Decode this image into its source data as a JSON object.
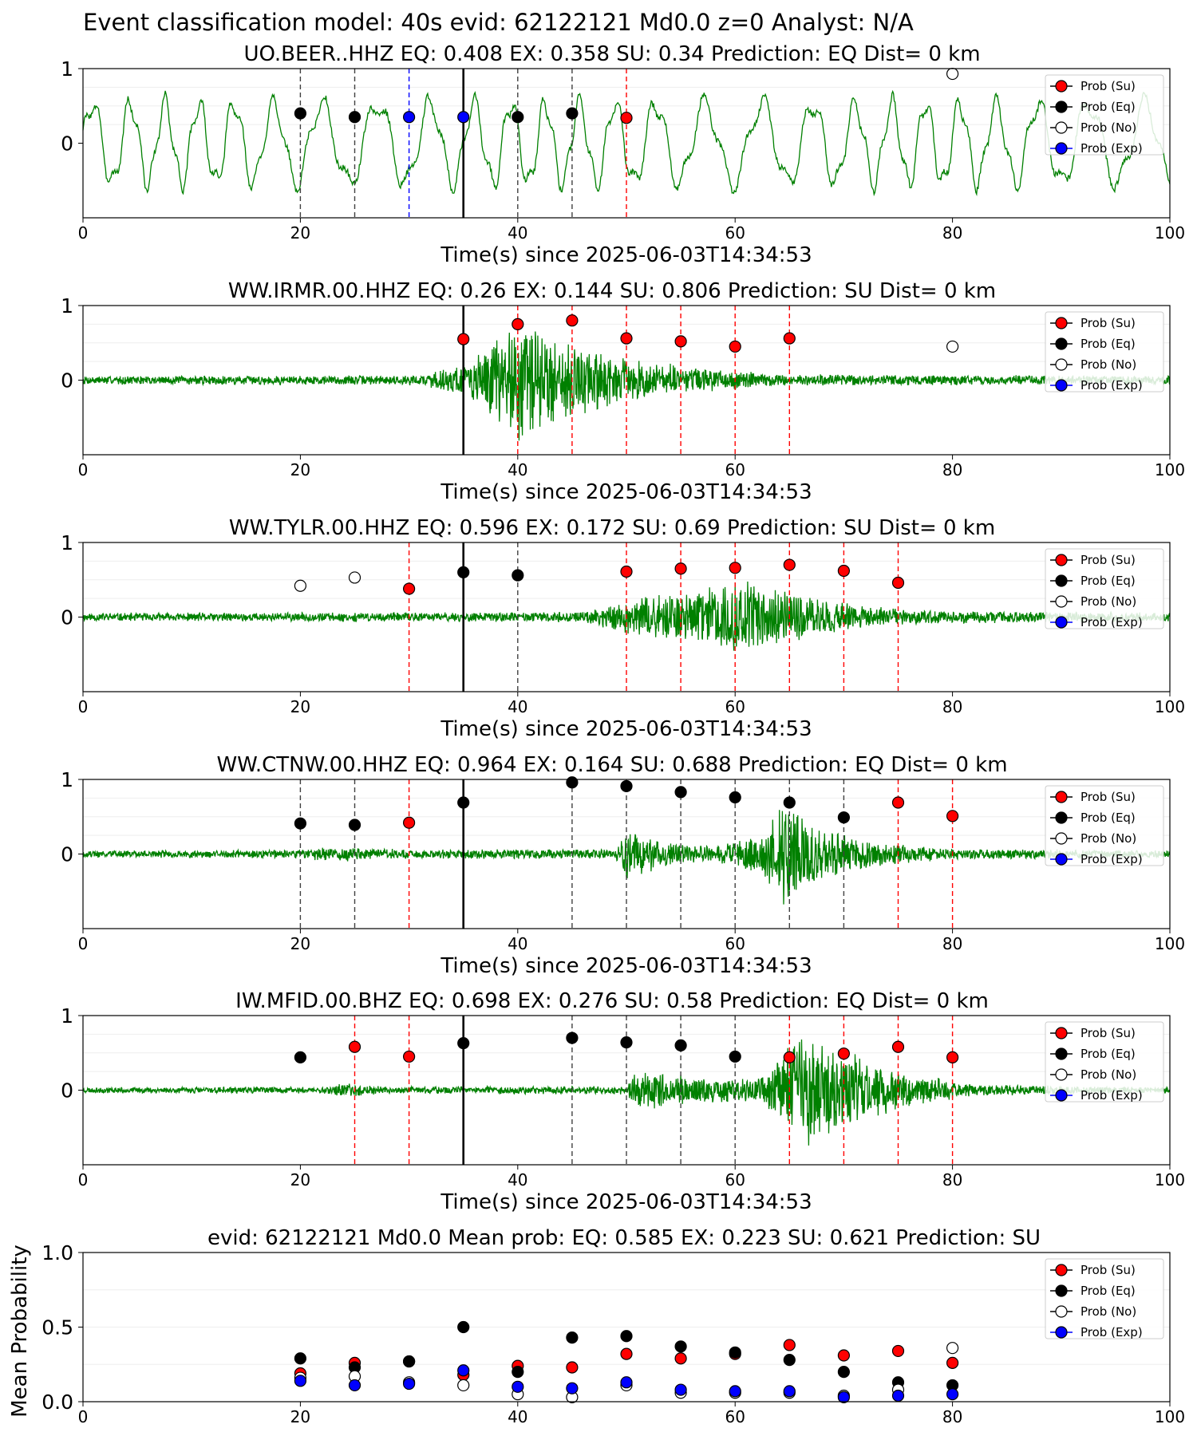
{
  "figure": {
    "suptitle": "Event classification model: 40s evid: 62122121 Md0.0 z=0 Analyst: N/A"
  },
  "legend_labels": [
    "Prob (Su)",
    "Prob (Eq)",
    "Prob (No)",
    "Prob (Exp)"
  ],
  "colors": {
    "waveform": "#008000",
    "su": "#ff0000",
    "eq": "#000000",
    "no": "#ffffff",
    "exp": "#0000ff",
    "line_su": "#ff0000",
    "line_eq": "#404040",
    "line_exp": "#0000ff",
    "line_origin": "#000000"
  },
  "chart_data": [
    {
      "type": "line",
      "title": "UO.BEER..HHZ   EQ: 0.408  EX: 0.358  SU: 0.34   Prediction: EQ    Dist= 0 km",
      "xlabel": "Time(s) since 2025-06-03T14:34:53",
      "xlim": [
        0,
        100
      ],
      "xticks": [
        0,
        20,
        40,
        60,
        80,
        100
      ],
      "yticks": [
        0,
        1
      ],
      "waveform": {
        "style": "long-period",
        "amplitude_envelope": [
          [
            0,
            0.7
          ],
          [
            100,
            0.7
          ]
        ],
        "seed": 3
      },
      "origin_line": 35,
      "vlines": [
        {
          "x": 20,
          "kind": "eq"
        },
        {
          "x": 25,
          "kind": "eq"
        },
        {
          "x": 30,
          "kind": "exp"
        },
        {
          "x": 40,
          "kind": "eq"
        },
        {
          "x": 45,
          "kind": "eq"
        },
        {
          "x": 50,
          "kind": "su"
        }
      ],
      "markers": [
        {
          "x": 20,
          "y": 0.4,
          "kind": "eq"
        },
        {
          "x": 25,
          "y": 0.35,
          "kind": "eq"
        },
        {
          "x": 30,
          "y": 0.35,
          "kind": "exp"
        },
        {
          "x": 35,
          "y": 0.35,
          "kind": "exp"
        },
        {
          "x": 40,
          "y": 0.35,
          "kind": "eq"
        },
        {
          "x": 45,
          "y": 0.4,
          "kind": "eq"
        },
        {
          "x": 50,
          "y": 0.34,
          "kind": "su"
        },
        {
          "x": 80,
          "y": 0.93,
          "kind": "no"
        }
      ]
    },
    {
      "type": "line",
      "title": "WW.IRMR.00.HHZ   EQ: 0.26  EX: 0.144  SU: 0.806   Prediction: SU    Dist= 0 km",
      "xlabel": "Time(s) since 2025-06-03T14:34:53",
      "xlim": [
        0,
        100
      ],
      "xticks": [
        0,
        20,
        40,
        60,
        80,
        100
      ],
      "yticks": [
        0,
        1
      ],
      "waveform": {
        "style": "noisy",
        "amplitude_envelope": [
          [
            0,
            0.06
          ],
          [
            31,
            0.07
          ],
          [
            36,
            0.3
          ],
          [
            40,
            0.9
          ],
          [
            44,
            0.6
          ],
          [
            50,
            0.3
          ],
          [
            58,
            0.15
          ],
          [
            65,
            0.08
          ],
          [
            100,
            0.06
          ]
        ],
        "seed": 7
      },
      "origin_line": 35,
      "vlines": [
        {
          "x": 40,
          "kind": "su"
        },
        {
          "x": 45,
          "kind": "su"
        },
        {
          "x": 50,
          "kind": "su"
        },
        {
          "x": 55,
          "kind": "su"
        },
        {
          "x": 60,
          "kind": "su"
        },
        {
          "x": 65,
          "kind": "su"
        }
      ],
      "markers": [
        {
          "x": 35,
          "y": 0.55,
          "kind": "su"
        },
        {
          "x": 40,
          "y": 0.75,
          "kind": "su"
        },
        {
          "x": 45,
          "y": 0.8,
          "kind": "su"
        },
        {
          "x": 50,
          "y": 0.56,
          "kind": "su"
        },
        {
          "x": 55,
          "y": 0.52,
          "kind": "su"
        },
        {
          "x": 60,
          "y": 0.45,
          "kind": "su"
        },
        {
          "x": 65,
          "y": 0.56,
          "kind": "su"
        },
        {
          "x": 80,
          "y": 0.45,
          "kind": "no"
        }
      ]
    },
    {
      "type": "line",
      "title": "WW.TYLR.00.HHZ   EQ: 0.596  EX: 0.172  SU: 0.69   Prediction: SU    Dist= 0 km",
      "xlabel": "Time(s) since 2025-06-03T14:34:53",
      "xlim": [
        0,
        100
      ],
      "xticks": [
        0,
        20,
        40,
        60,
        80,
        100
      ],
      "yticks": [
        0,
        1
      ],
      "waveform": {
        "style": "noisy",
        "amplitude_envelope": [
          [
            0,
            0.06
          ],
          [
            46,
            0.07
          ],
          [
            50,
            0.25
          ],
          [
            55,
            0.35
          ],
          [
            60,
            0.55
          ],
          [
            64,
            0.4
          ],
          [
            70,
            0.2
          ],
          [
            76,
            0.1
          ],
          [
            100,
            0.06
          ]
        ],
        "seed": 11
      },
      "origin_line": 35,
      "vlines": [
        {
          "x": 30,
          "kind": "su"
        },
        {
          "x": 40,
          "kind": "eq"
        },
        {
          "x": 50,
          "kind": "su"
        },
        {
          "x": 55,
          "kind": "su"
        },
        {
          "x": 60,
          "kind": "su"
        },
        {
          "x": 65,
          "kind": "su"
        },
        {
          "x": 70,
          "kind": "su"
        },
        {
          "x": 75,
          "kind": "su"
        }
      ],
      "markers": [
        {
          "x": 20,
          "y": 0.42,
          "kind": "no"
        },
        {
          "x": 25,
          "y": 0.53,
          "kind": "no"
        },
        {
          "x": 30,
          "y": 0.38,
          "kind": "su"
        },
        {
          "x": 35,
          "y": 0.6,
          "kind": "eq"
        },
        {
          "x": 40,
          "y": 0.56,
          "kind": "eq"
        },
        {
          "x": 50,
          "y": 0.61,
          "kind": "su"
        },
        {
          "x": 55,
          "y": 0.65,
          "kind": "su"
        },
        {
          "x": 60,
          "y": 0.66,
          "kind": "su"
        },
        {
          "x": 65,
          "y": 0.7,
          "kind": "su"
        },
        {
          "x": 70,
          "y": 0.62,
          "kind": "su"
        },
        {
          "x": 75,
          "y": 0.46,
          "kind": "su"
        }
      ]
    },
    {
      "type": "line",
      "title": "WW.CTNW.00.HHZ   EQ: 0.964  EX: 0.164  SU: 0.688   Prediction: EQ    Dist= 0 km",
      "xlabel": "Time(s) since 2025-06-03T14:34:53",
      "xlim": [
        0,
        100
      ],
      "xticks": [
        0,
        20,
        40,
        60,
        80,
        100
      ],
      "yticks": [
        0,
        1
      ],
      "waveform": {
        "style": "noisy",
        "amplitude_envelope": [
          [
            0,
            0.05
          ],
          [
            20,
            0.06
          ],
          [
            23,
            0.12
          ],
          [
            27,
            0.07
          ],
          [
            49,
            0.07
          ],
          [
            50,
            0.4
          ],
          [
            53,
            0.2
          ],
          [
            58,
            0.1
          ],
          [
            62,
            0.3
          ],
          [
            65,
            0.8
          ],
          [
            68,
            0.35
          ],
          [
            74,
            0.15
          ],
          [
            80,
            0.08
          ],
          [
            100,
            0.05
          ]
        ],
        "seed": 19
      },
      "origin_line": 35,
      "vlines": [
        {
          "x": 20,
          "kind": "eq"
        },
        {
          "x": 25,
          "kind": "eq"
        },
        {
          "x": 30,
          "kind": "su"
        },
        {
          "x": 45,
          "kind": "eq"
        },
        {
          "x": 50,
          "kind": "eq"
        },
        {
          "x": 55,
          "kind": "eq"
        },
        {
          "x": 60,
          "kind": "eq"
        },
        {
          "x": 65,
          "kind": "eq"
        },
        {
          "x": 70,
          "kind": "eq"
        },
        {
          "x": 75,
          "kind": "su"
        },
        {
          "x": 80,
          "kind": "su"
        }
      ],
      "markers": [
        {
          "x": 20,
          "y": 0.41,
          "kind": "eq"
        },
        {
          "x": 25,
          "y": 0.39,
          "kind": "eq"
        },
        {
          "x": 30,
          "y": 0.42,
          "kind": "su"
        },
        {
          "x": 35,
          "y": 0.69,
          "kind": "eq"
        },
        {
          "x": 45,
          "y": 0.96,
          "kind": "eq"
        },
        {
          "x": 50,
          "y": 0.91,
          "kind": "eq"
        },
        {
          "x": 55,
          "y": 0.83,
          "kind": "eq"
        },
        {
          "x": 60,
          "y": 0.76,
          "kind": "eq"
        },
        {
          "x": 65,
          "y": 0.69,
          "kind": "eq"
        },
        {
          "x": 70,
          "y": 0.49,
          "kind": "eq"
        },
        {
          "x": 75,
          "y": 0.69,
          "kind": "su"
        },
        {
          "x": 80,
          "y": 0.51,
          "kind": "su"
        }
      ]
    },
    {
      "type": "line",
      "title": "IW.MFID.00.BHZ   EQ: 0.698  EX: 0.276  SU: 0.58   Prediction: EQ    Dist= 0 km",
      "xlabel": "Time(s) since 2025-06-03T14:34:53",
      "xlim": [
        0,
        100
      ],
      "xticks": [
        0,
        20,
        40,
        60,
        80,
        100
      ],
      "yticks": [
        0,
        1
      ],
      "waveform": {
        "style": "noisy",
        "amplitude_envelope": [
          [
            0,
            0.04
          ],
          [
            22,
            0.05
          ],
          [
            24,
            0.1
          ],
          [
            28,
            0.05
          ],
          [
            50,
            0.06
          ],
          [
            51,
            0.3
          ],
          [
            56,
            0.2
          ],
          [
            62,
            0.15
          ],
          [
            66,
            0.8
          ],
          [
            70,
            0.6
          ],
          [
            76,
            0.25
          ],
          [
            82,
            0.08
          ],
          [
            100,
            0.04
          ]
        ],
        "seed": 23
      },
      "origin_line": 35,
      "vlines": [
        {
          "x": 25,
          "kind": "su"
        },
        {
          "x": 30,
          "kind": "su"
        },
        {
          "x": 45,
          "kind": "eq"
        },
        {
          "x": 50,
          "kind": "eq"
        },
        {
          "x": 55,
          "kind": "eq"
        },
        {
          "x": 60,
          "kind": "eq"
        },
        {
          "x": 65,
          "kind": "su"
        },
        {
          "x": 70,
          "kind": "su"
        },
        {
          "x": 75,
          "kind": "su"
        },
        {
          "x": 80,
          "kind": "su"
        }
      ],
      "markers": [
        {
          "x": 20,
          "y": 0.44,
          "kind": "eq"
        },
        {
          "x": 25,
          "y": 0.58,
          "kind": "su"
        },
        {
          "x": 30,
          "y": 0.45,
          "kind": "su"
        },
        {
          "x": 35,
          "y": 0.63,
          "kind": "eq"
        },
        {
          "x": 45,
          "y": 0.7,
          "kind": "eq"
        },
        {
          "x": 50,
          "y": 0.64,
          "kind": "eq"
        },
        {
          "x": 55,
          "y": 0.6,
          "kind": "eq"
        },
        {
          "x": 60,
          "y": 0.45,
          "kind": "eq"
        },
        {
          "x": 65,
          "y": 0.44,
          "kind": "su"
        },
        {
          "x": 70,
          "y": 0.49,
          "kind": "su"
        },
        {
          "x": 75,
          "y": 0.58,
          "kind": "su"
        },
        {
          "x": 80,
          "y": 0.44,
          "kind": "su"
        }
      ]
    },
    {
      "type": "scatter",
      "title": "evid: 62122121  Md0.0   Mean prob:   EQ: 0.585  EX: 0.223  SU: 0.621   Prediction: SU",
      "ylabel": "Mean Probability",
      "xlim": [
        0,
        100
      ],
      "xticks": [
        0,
        20,
        40,
        60,
        80,
        100
      ],
      "ylim": [
        0,
        1
      ],
      "yticks": [
        0.0,
        0.5,
        1.0
      ],
      "ytick_labels": [
        "0.0",
        "0.5",
        "1.0"
      ],
      "x": [
        20,
        25,
        30,
        35,
        40,
        45,
        50,
        55,
        60,
        65,
        70,
        75,
        80
      ],
      "series": [
        {
          "name": "Prob (Su)",
          "kind": "su",
          "values": [
            0.19,
            0.26,
            0.27,
            0.18,
            0.24,
            0.23,
            0.32,
            0.29,
            0.32,
            0.38,
            0.31,
            0.34,
            0.26
          ]
        },
        {
          "name": "Prob (Eq)",
          "kind": "eq",
          "values": [
            0.29,
            0.23,
            0.27,
            0.5,
            0.2,
            0.43,
            0.44,
            0.37,
            0.33,
            0.28,
            0.2,
            0.13,
            0.11
          ]
        },
        {
          "name": "Prob (No)",
          "kind": "no",
          "values": [
            0.16,
            0.17,
            0.13,
            0.11,
            0.05,
            0.03,
            0.11,
            0.06,
            0.06,
            0.06,
            0.04,
            0.08,
            0.36
          ]
        },
        {
          "name": "Prob (Exp)",
          "kind": "exp",
          "values": [
            0.14,
            0.11,
            0.12,
            0.21,
            0.1,
            0.09,
            0.13,
            0.08,
            0.07,
            0.07,
            0.03,
            0.04,
            0.05
          ]
        }
      ]
    }
  ]
}
